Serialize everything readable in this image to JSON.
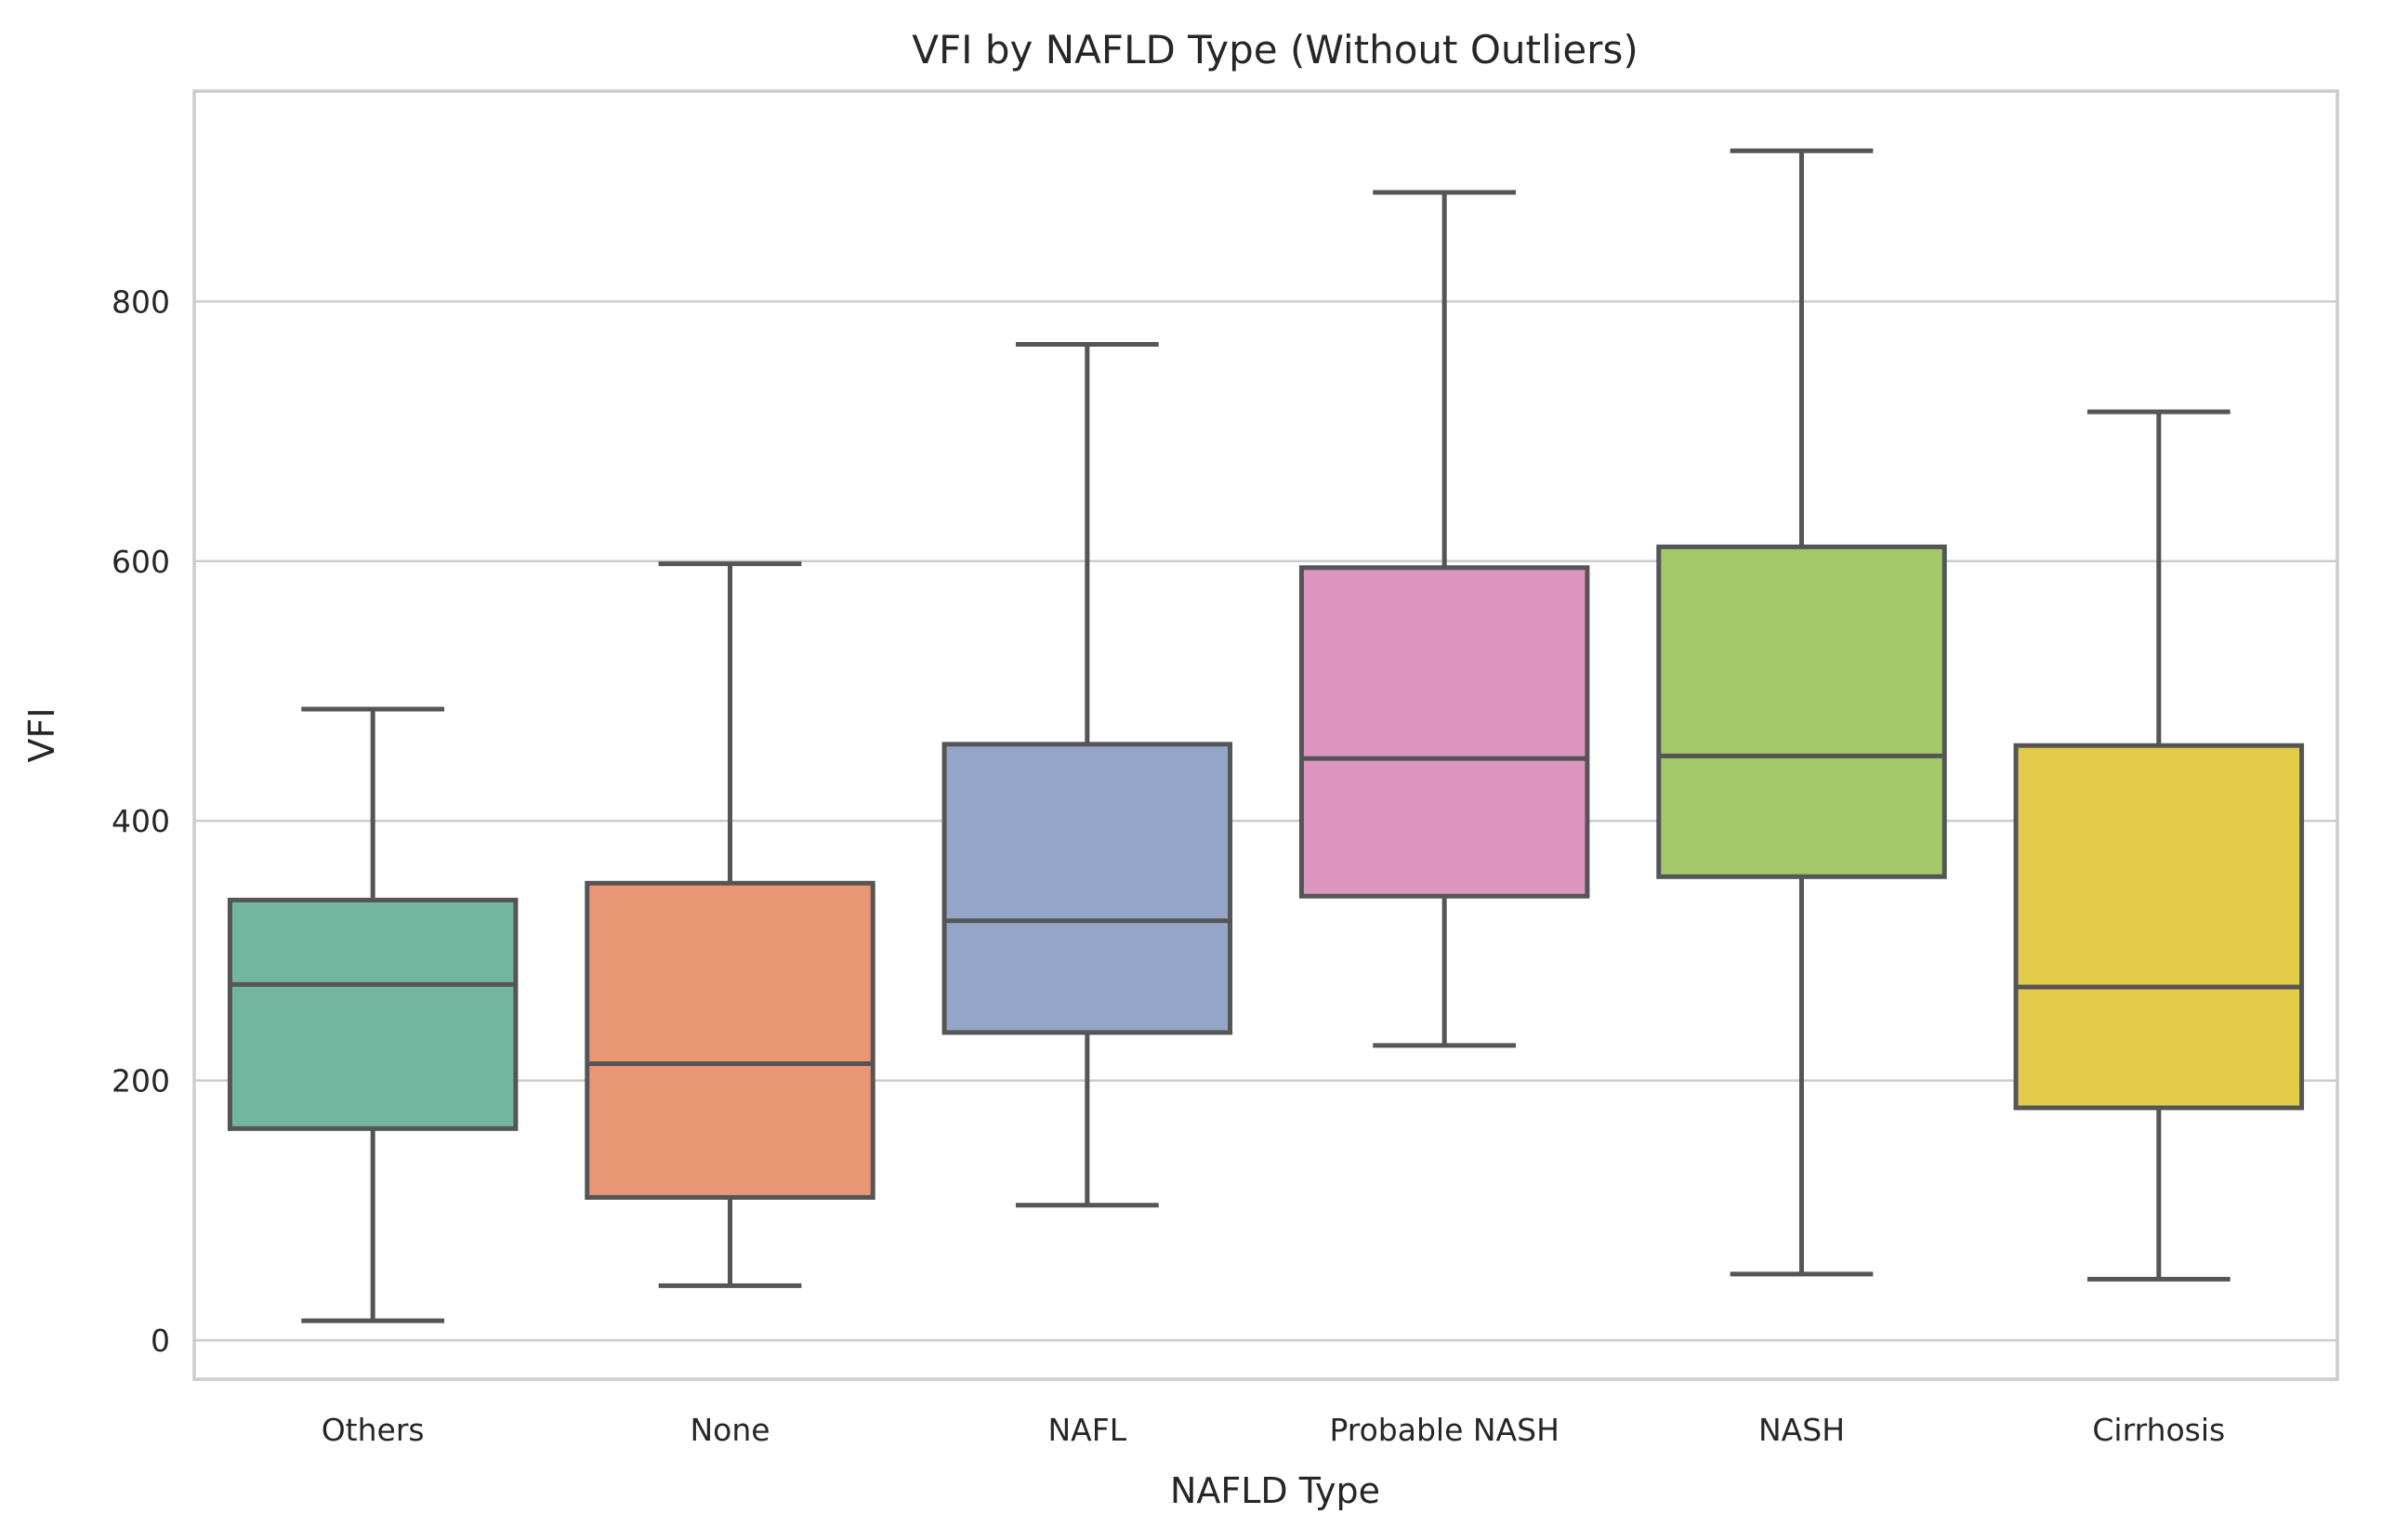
{
  "chart_data": {
    "type": "box",
    "title": "VFI by NAFLD Type (Without Outliers)",
    "xlabel": "NAFLD Type",
    "ylabel": "VFI",
    "ylim": [
      -30,
      962
    ],
    "yticks": [
      0,
      200,
      400,
      600,
      800
    ],
    "grid": true,
    "categories": [
      "Others",
      "None",
      "NAFL",
      "Probable NASH",
      "NASH",
      "Cirrhosis"
    ],
    "colors": [
      "#72b6a0",
      "#e99674",
      "#94a6c8",
      "#dc96bf",
      "#a2c867",
      "#e4cc4b"
    ],
    "edge_color": "#555555",
    "boxes": [
      {
        "category": "Others",
        "whisker_low": 15,
        "q1": 163,
        "median": 274,
        "q3": 339,
        "whisker_high": 486
      },
      {
        "category": "None",
        "whisker_low": 42,
        "q1": 110,
        "median": 213,
        "q3": 352,
        "whisker_high": 598
      },
      {
        "category": "NAFL",
        "whisker_low": 104,
        "q1": 237,
        "median": 323,
        "q3": 459,
        "whisker_high": 767
      },
      {
        "category": "Probable NASH",
        "whisker_low": 227,
        "q1": 342,
        "median": 448,
        "q3": 595,
        "whisker_high": 884
      },
      {
        "category": "NASH",
        "whisker_low": 51,
        "q1": 357,
        "median": 450,
        "q3": 611,
        "whisker_high": 916
      },
      {
        "category": "Cirrhosis",
        "whisker_low": 47,
        "q1": 179,
        "median": 272,
        "q3": 458,
        "whisker_high": 715
      }
    ]
  }
}
